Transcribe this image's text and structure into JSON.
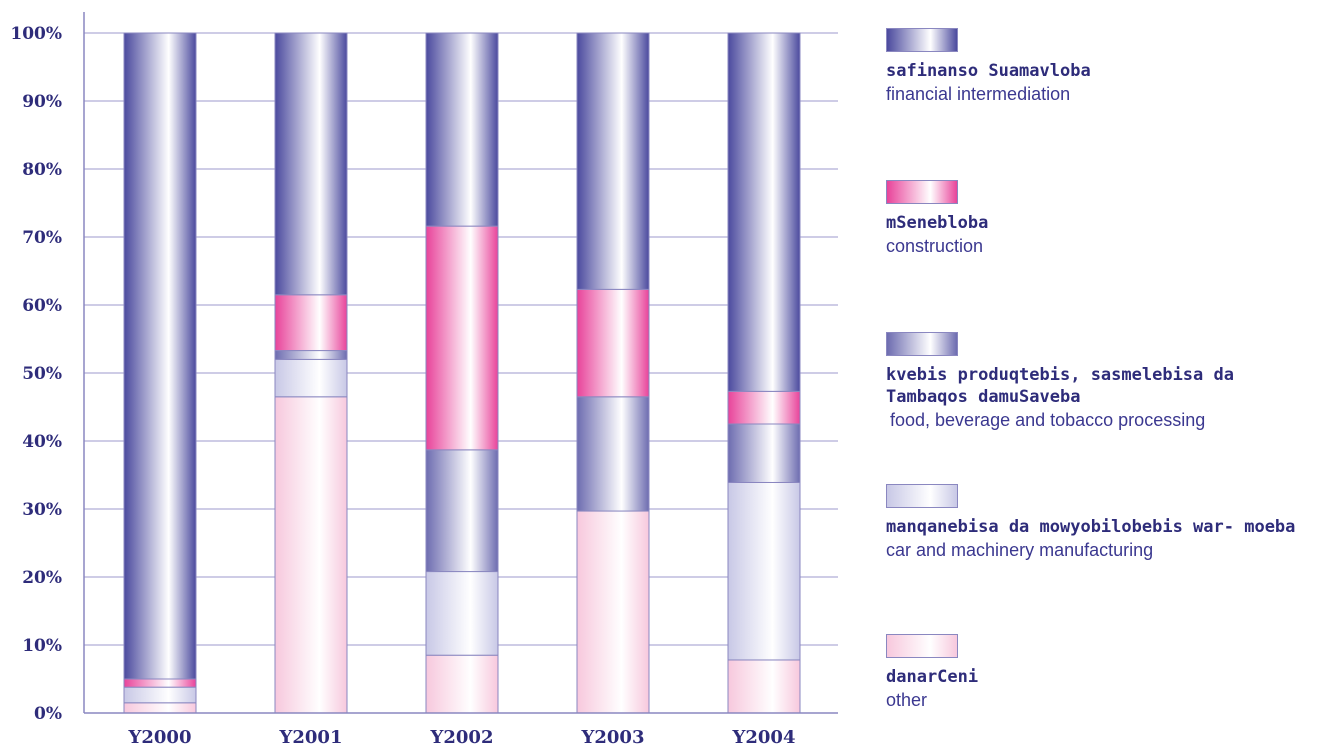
{
  "colors": {
    "axis": "#8a87c0",
    "grid": "#9c99cc",
    "text": "#2e2c7a",
    "financial": "#4b4a9e",
    "construction": "#e8439a",
    "food": "#6d6cb0",
    "car": "#c8c8e6",
    "other": "#f7c8dd"
  },
  "chart_data": {
    "type": "bar",
    "stacked": true,
    "percent": true,
    "categories": [
      "Y2000",
      "Y2001",
      "Y2002",
      "Y2003",
      "Y2004"
    ],
    "ylim": [
      0,
      100
    ],
    "yticks": [
      "0%",
      "10%",
      "20%",
      "30%",
      "40%",
      "50%",
      "60%",
      "70%",
      "80%",
      "90%",
      "100%"
    ],
    "grid": true,
    "legend_position": "right",
    "series": [
      {
        "key": "other",
        "name_ka": "danarCeni",
        "name_en": "other",
        "values": [
          1.5,
          46.5,
          8.5,
          29.7,
          7.8
        ]
      },
      {
        "key": "car",
        "name_ka": "manqanebisa da mowyobilobebis war- moeba",
        "name_en": "car and machinery manufacturing",
        "values": [
          2.3,
          5.5,
          12.3,
          0,
          26.1
        ]
      },
      {
        "key": "food",
        "name_ka": "kvebis produqtebis, sasmelebisa da Tambaqos damuSaveba",
        "name_en": "food, beverage and tobacco processing",
        "values": [
          0,
          1.3,
          17.9,
          16.8,
          8.6
        ]
      },
      {
        "key": "construction",
        "name_ka": "mSenebloba",
        "name_en": "construction",
        "values": [
          1.2,
          8.2,
          32.9,
          15.8,
          4.8
        ]
      },
      {
        "key": "financial",
        "name_ka": "safinanso Suamavloba",
        "name_en": "financial intermediation",
        "values": [
          95.0,
          38.5,
          28.4,
          37.7,
          52.7
        ]
      }
    ]
  }
}
